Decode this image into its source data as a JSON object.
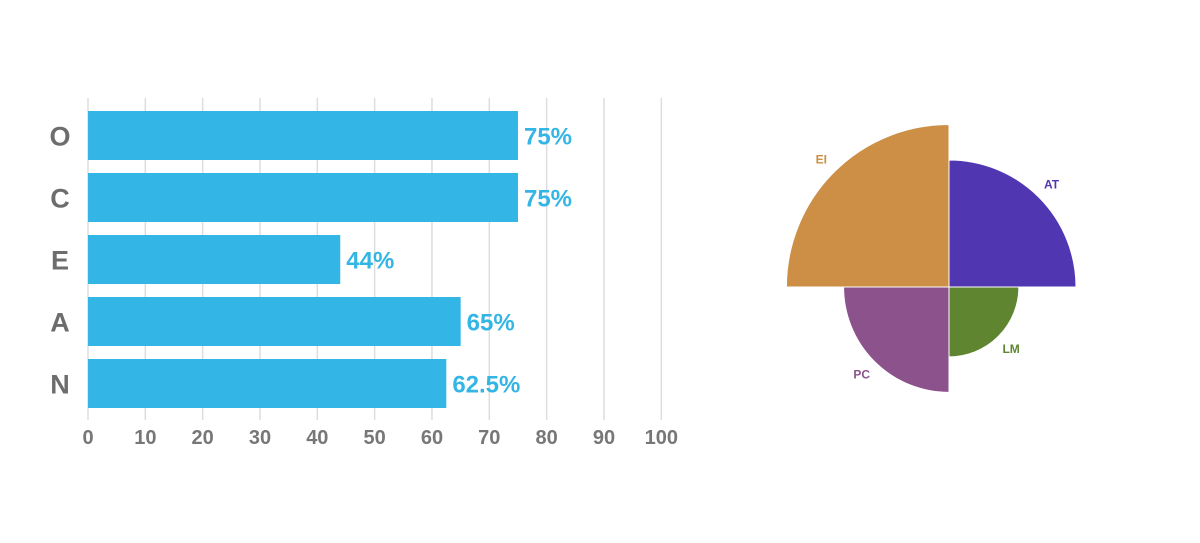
{
  "chart_data": [
    {
      "type": "bar",
      "orientation": "horizontal",
      "categories": [
        "O",
        "C",
        "E",
        "A",
        "N"
      ],
      "values": [
        75,
        75,
        44,
        65,
        62.5
      ],
      "data_labels": [
        "75%",
        "75%",
        "44%",
        "65%",
        "62.5%"
      ],
      "xlim": [
        0,
        100
      ],
      "x_ticks": [
        "0",
        "10",
        "20",
        "30",
        "40",
        "50",
        "60",
        "70",
        "80",
        "90",
        "100"
      ],
      "grid": true,
      "title": "",
      "xlabel": "",
      "ylabel": "",
      "colors": {
        "bar": "#33b5e5",
        "data_label": "#33b5e5",
        "category_label": "#6d6d6d",
        "tick_label": "#777777",
        "grid": "#dddddd"
      }
    },
    {
      "type": "pie",
      "variant": "polar-area",
      "slices": [
        {
          "label": "AT",
          "value": 100,
          "color": "#5136b2"
        },
        {
          "label": "LM",
          "value": 55,
          "color": "#5f8530"
        },
        {
          "label": "PC",
          "value": 83,
          "color": "#8c528c"
        },
        {
          "label": "EI",
          "value": 128,
          "color": "#cc8f45"
        }
      ],
      "title": ""
    }
  ]
}
